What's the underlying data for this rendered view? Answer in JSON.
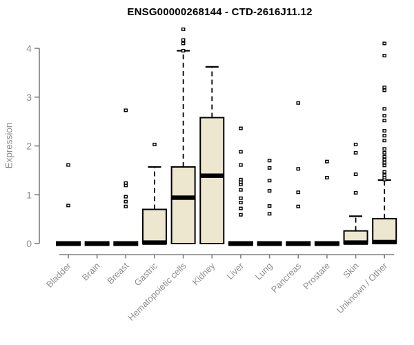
{
  "chart_data": {
    "type": "boxplot",
    "title": "ENSG00000268144 - CTD-2616J11.12",
    "xlabel": "",
    "ylabel": "Expression",
    "ylim": [
      0,
      4.45
    ],
    "yticks": [
      0,
      1,
      2,
      3,
      4
    ],
    "grid": false,
    "legend": "none",
    "categories": [
      "Bladder",
      "Brain",
      "Breast",
      "Gastric",
      "Hematopoietic cells",
      "Kidney",
      "Liver",
      "Lung",
      "Pancreas",
      "Prostate",
      "Skin",
      "Unknown / Other"
    ],
    "boxes": [
      {
        "category": "Bladder",
        "q1": 0,
        "median": 0,
        "q3": 0,
        "whisker_low": 0,
        "whisker_high": 0,
        "outliers": [
          0.78,
          1.61
        ]
      },
      {
        "category": "Brain",
        "q1": 0,
        "median": 0,
        "q3": 0,
        "whisker_low": 0,
        "whisker_high": 0,
        "outliers": []
      },
      {
        "category": "Breast",
        "q1": 0,
        "median": 0,
        "q3": 0,
        "whisker_low": 0,
        "whisker_high": 0,
        "outliers": [
          0.76,
          0.86,
          0.96,
          1.19,
          1.24,
          2.73
        ]
      },
      {
        "category": "Gastric",
        "q1": 0,
        "median": 0.02,
        "q3": 0.7,
        "whisker_low": 0,
        "whisker_high": 1.57,
        "outliers": [
          2.03
        ]
      },
      {
        "category": "Hematopoietic cells",
        "q1": 0,
        "median": 0.94,
        "q3": 1.57,
        "whisker_low": 0,
        "whisker_high": 3.95,
        "outliers": [
          3.95,
          4.1,
          4.17,
          4.39
        ]
      },
      {
        "category": "Kidney",
        "q1": 0,
        "median": 1.39,
        "q3": 2.58,
        "whisker_low": 0,
        "whisker_high": 3.62,
        "outliers": []
      },
      {
        "category": "Liver",
        "q1": 0,
        "median": 0,
        "q3": 0,
        "whisker_low": 0,
        "whisker_high": 0,
        "outliers": [
          0.59,
          0.72,
          0.84,
          0.93,
          1.1,
          1.21,
          1.26,
          1.31,
          1.61,
          1.88,
          2.36
        ]
      },
      {
        "category": "Lung",
        "q1": 0,
        "median": 0,
        "q3": 0,
        "whisker_low": 0,
        "whisker_high": 0,
        "outliers": [
          0.61,
          0.77,
          1.08,
          1.29,
          1.55,
          1.7
        ]
      },
      {
        "category": "Pancreas",
        "q1": 0,
        "median": 0,
        "q3": 0,
        "whisker_low": 0,
        "whisker_high": 0,
        "outliers": [
          0.76,
          1.05,
          1.53,
          2.88
        ]
      },
      {
        "category": "Prostate",
        "q1": 0,
        "median": 0,
        "q3": 0,
        "whisker_low": 0,
        "whisker_high": 0,
        "outliers": [
          1.35,
          1.68
        ]
      },
      {
        "category": "Skin",
        "q1": 0,
        "median": 0.02,
        "q3": 0.26,
        "whisker_low": 0,
        "whisker_high": 0.56,
        "outliers": [
          1.04,
          1.42,
          1.86,
          2.03
        ]
      },
      {
        "category": "Unknown / Other",
        "q1": 0,
        "median": 0.03,
        "q3": 0.51,
        "whisker_low": 0,
        "whisker_high": 1.3,
        "outliers": [
          1.31,
          1.35,
          1.4,
          1.47,
          1.6,
          1.66,
          1.72,
          1.78,
          1.86,
          1.94,
          2.11,
          2.21,
          2.31,
          2.52,
          2.62,
          2.76,
          3.14,
          3.2,
          3.85,
          4.1
        ]
      }
    ],
    "colors": {
      "box_fill": "#EDE7D0",
      "box_stroke": "#000000",
      "median": "#000000",
      "whisker": "#000000",
      "axis": "#7f7f7f",
      "tick_label": "#8e8e8e",
      "title": "#000000",
      "background": "#ffffff"
    }
  }
}
